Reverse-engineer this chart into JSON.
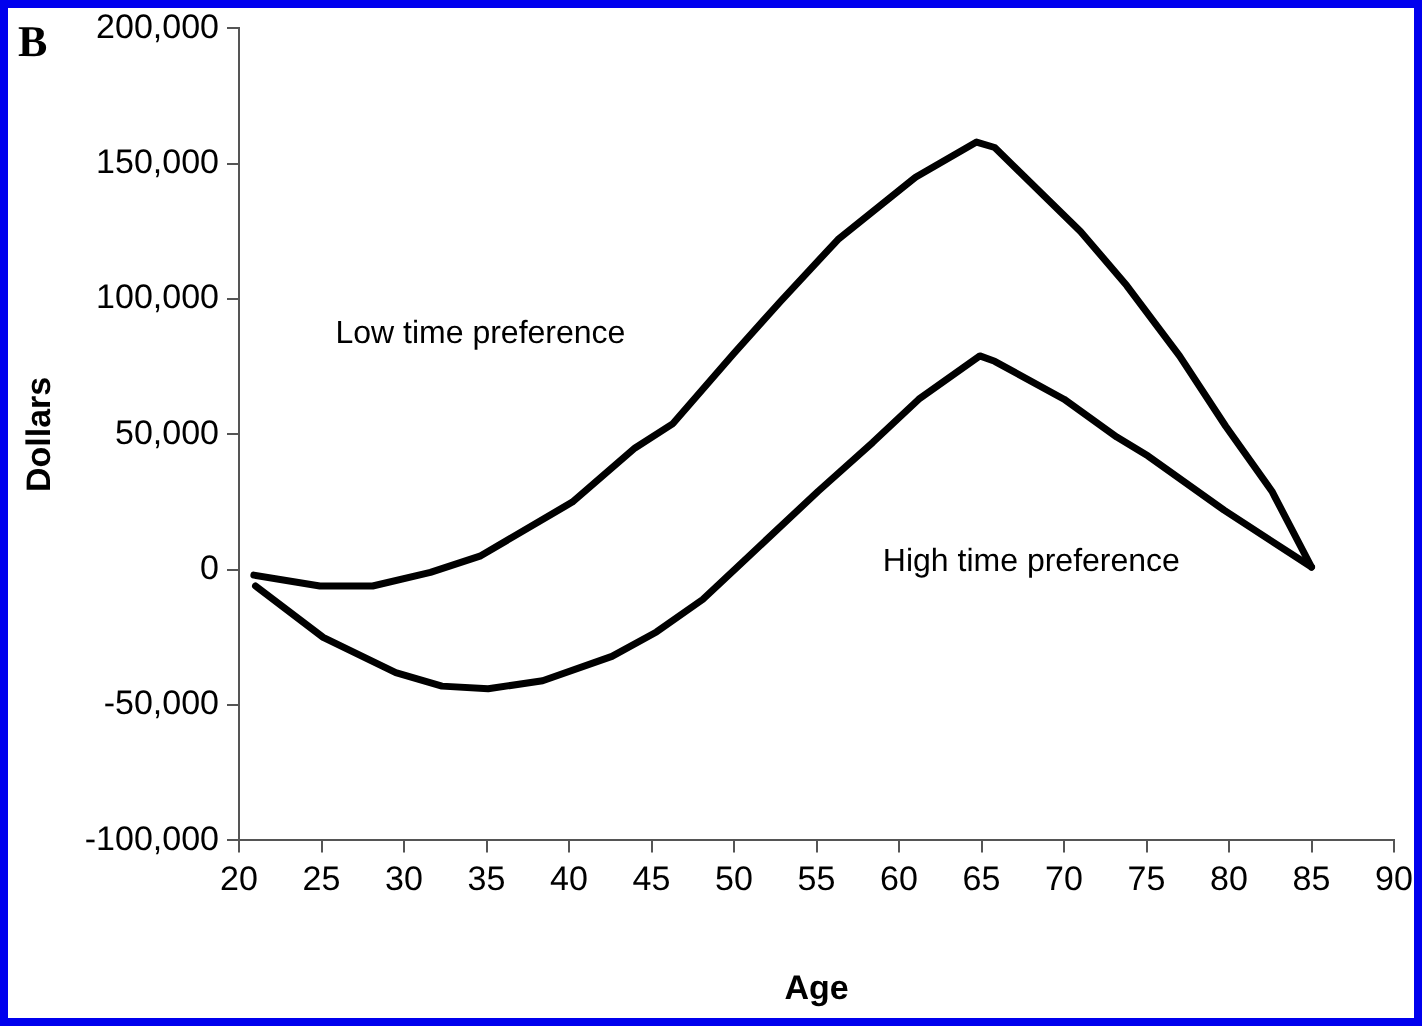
{
  "chart_data": {
    "type": "line",
    "xlabel": "Age",
    "ylabel": "Dollars",
    "xlim": [
      20,
      90
    ],
    "xticks": [
      20,
      25,
      30,
      35,
      40,
      45,
      50,
      55,
      60,
      65,
      70,
      75,
      80,
      85,
      90
    ],
    "ylim": [
      -100000,
      200000
    ],
    "yticks": [
      {
        "value": -100000,
        "label": "-100,000"
      },
      {
        "value": -50000,
        "label": "-50,000"
      },
      {
        "value": 0,
        "label": "0"
      },
      {
        "value": 50000,
        "label": "50,000"
      },
      {
        "value": 100000,
        "label": "100,000"
      },
      {
        "value": 150000,
        "label": "150,000"
      },
      {
        "value": 200000,
        "label": "200,000"
      }
    ],
    "grid": false,
    "legend": false,
    "marker": "none",
    "line_style": "solid",
    "series": [
      {
        "name": "Low time preference",
        "color": "#000000",
        "x": [
          20.9,
          24.9,
          28.1,
          31.6,
          34.6,
          40.2,
          44,
          46.3,
          50,
          52.8,
          56.3,
          61,
          64.7,
          65.8,
          71,
          73.8,
          77,
          79.8,
          82.6,
          85
        ],
        "values": [
          -2000,
          -6000,
          -6000,
          -1000,
          5000,
          25000,
          45000,
          54000,
          80000,
          99000,
          122000,
          145000,
          158000,
          156000,
          125000,
          105000,
          79000,
          53000,
          29000,
          1000
        ]
      },
      {
        "name": "High time preference",
        "color": "#000000",
        "x": [
          21,
          25.1,
          29.5,
          32.3,
          35.1,
          38.4,
          42.6,
          45.3,
          48.1,
          50.9,
          55.1,
          58.4,
          61.2,
          64.9,
          65.8,
          70,
          73.2,
          75.1,
          79.7,
          85
        ],
        "values": [
          -6000,
          -25000,
          -38000,
          -43000,
          -44000,
          -41000,
          -32000,
          -23000,
          -11000,
          5000,
          29000,
          47000,
          63000,
          79000,
          77000,
          63000,
          49000,
          42000,
          22000,
          1000
        ]
      }
    ],
    "annotations": [
      "B"
    ]
  }
}
